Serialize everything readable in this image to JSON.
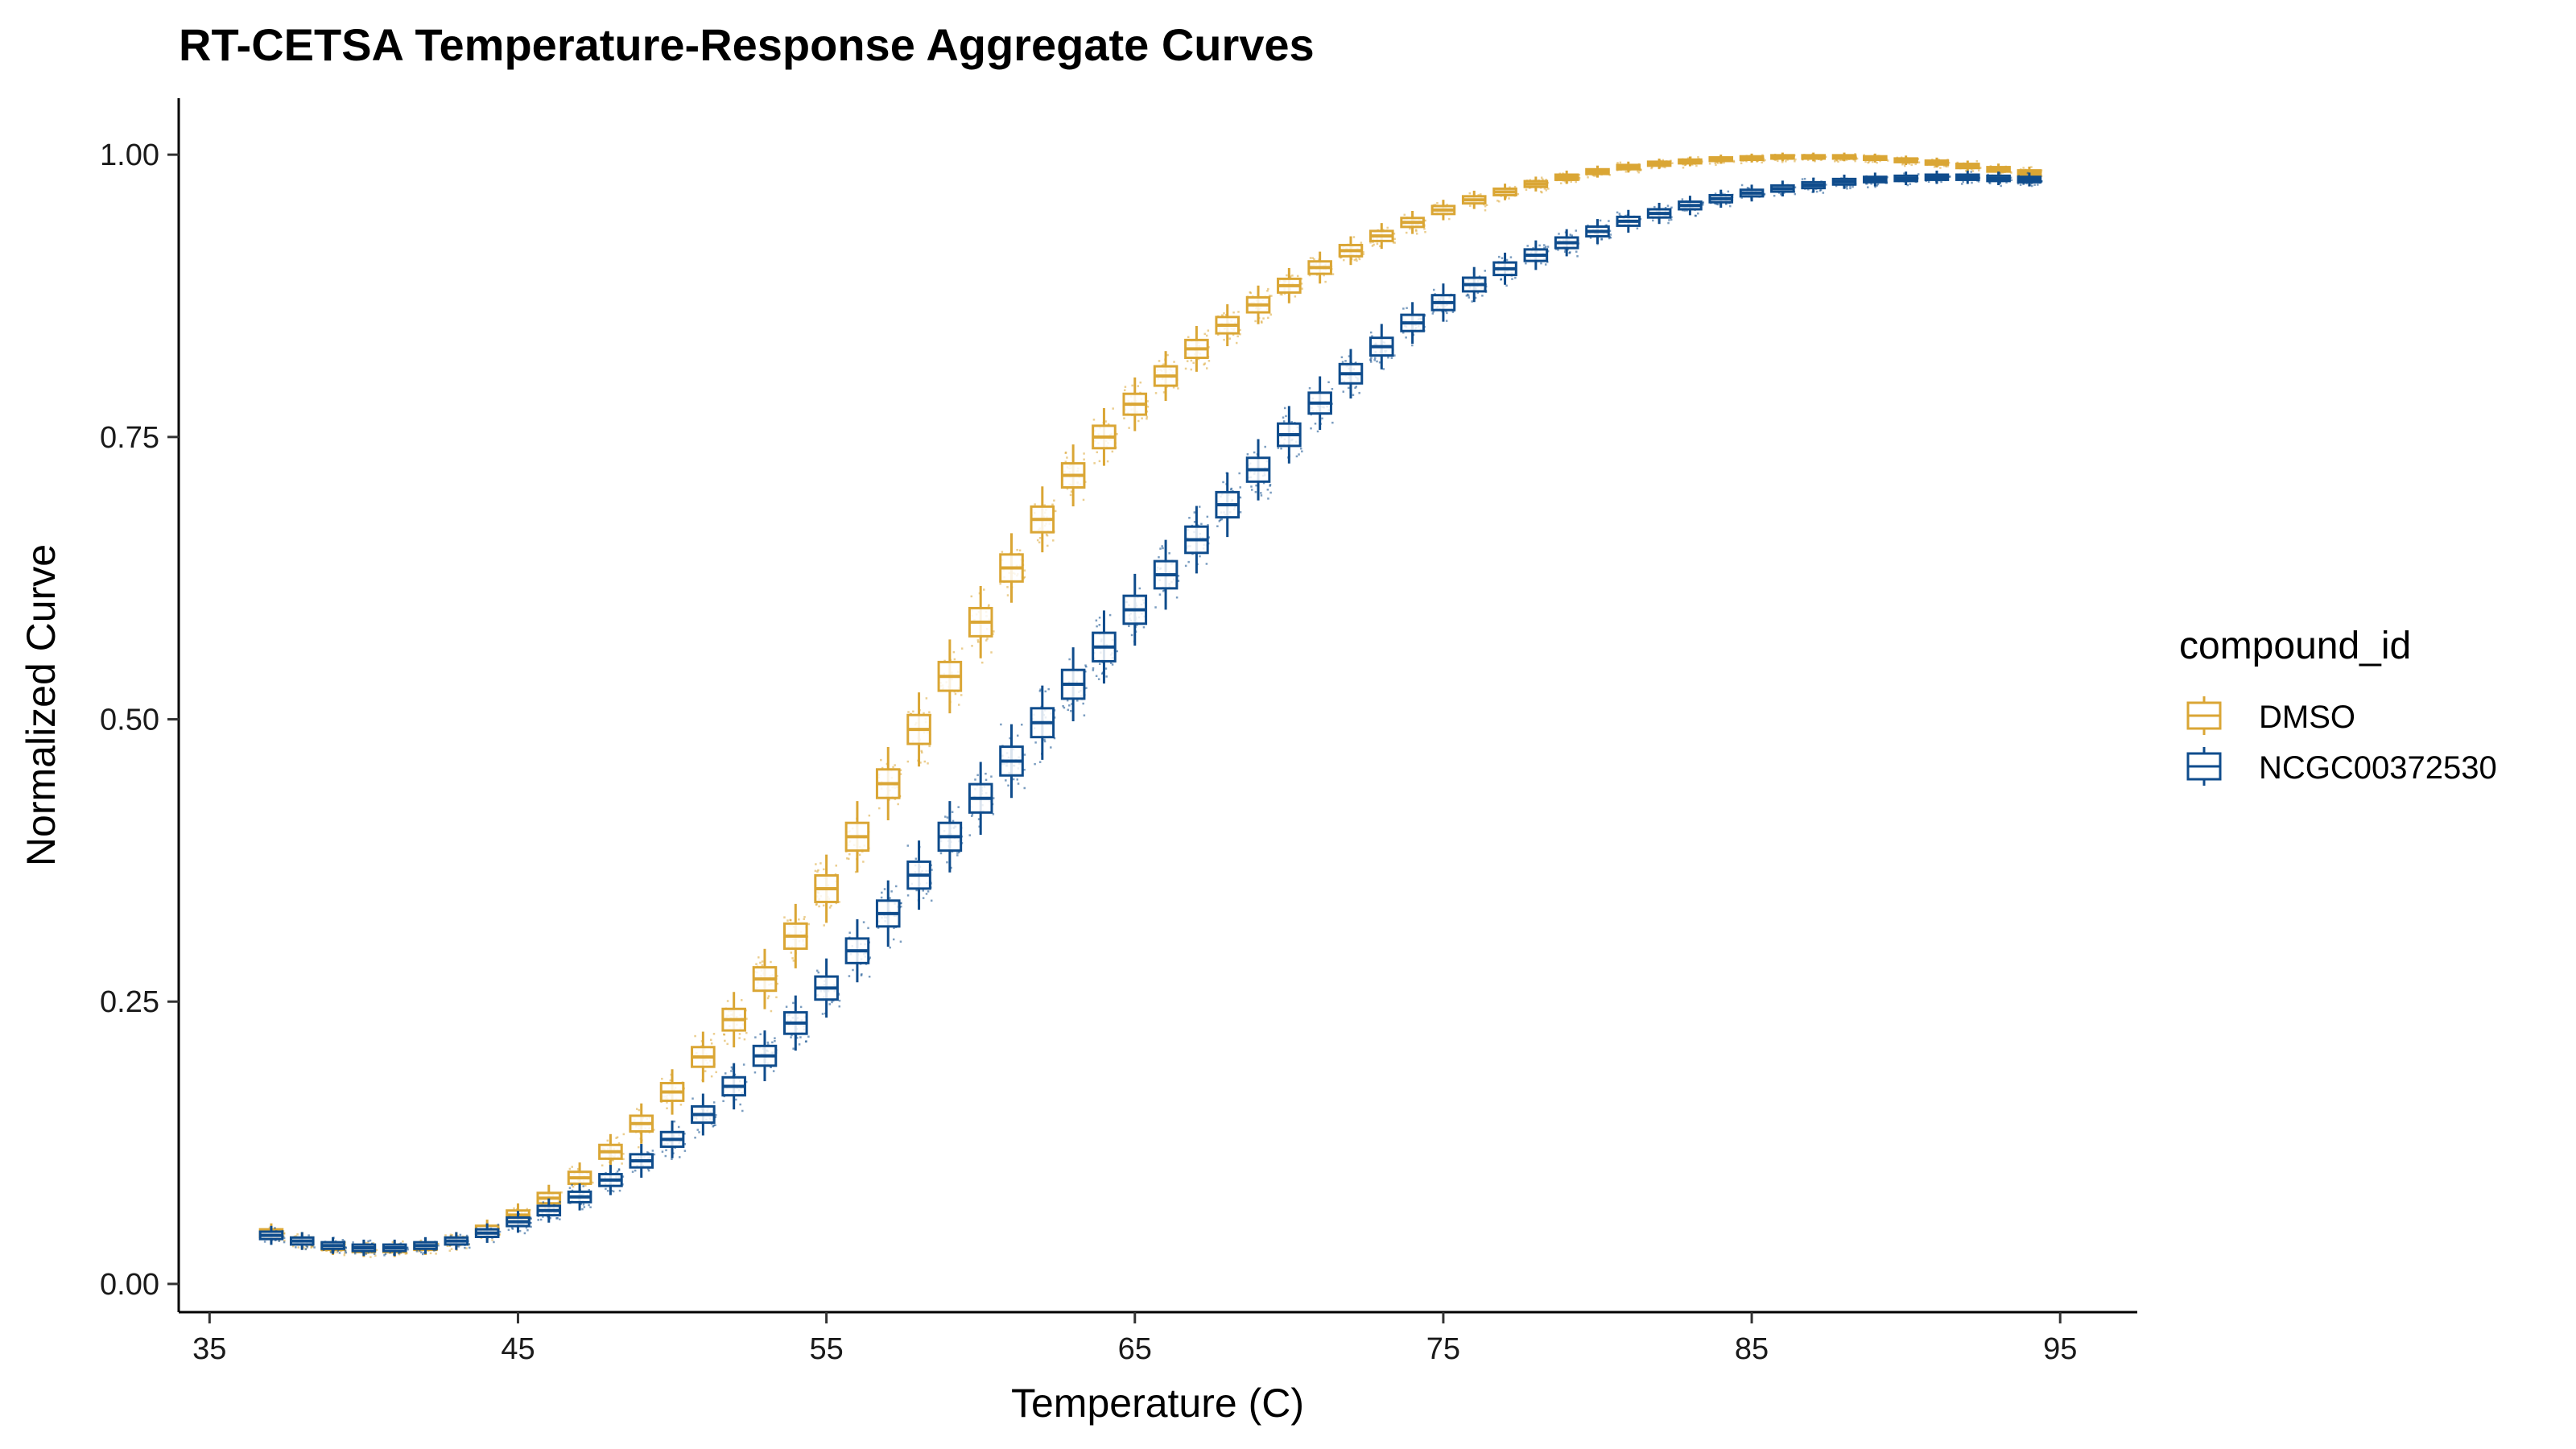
{
  "chart_data": {
    "type": "box",
    "title": "RT-CETSA Temperature-Response Aggregate Curves",
    "xlabel": "Temperature (C)",
    "ylabel": "Normalized Curve",
    "xlim": [
      34,
      97.5
    ],
    "ylim": [
      -0.025,
      1.05
    ],
    "xticks": [
      35,
      45,
      55,
      65,
      75,
      85,
      95
    ],
    "xtick_labels": [
      "35",
      "45",
      "55",
      "65",
      "75",
      "85",
      "95"
    ],
    "yticks": [
      0,
      0.25,
      0.5,
      0.75,
      1.0
    ],
    "ytick_labels": [
      "0.00",
      "0.25",
      "0.50",
      "0.75",
      "1.00"
    ],
    "grid": false,
    "legend": {
      "title": "compound_id",
      "placement": "right",
      "entries": [
        "DMSO",
        "NCGC00372530"
      ]
    },
    "series": [
      {
        "name": "DMSO",
        "color": "#DAA635",
        "x": [
          37,
          38,
          39,
          40,
          41,
          42,
          43,
          44,
          45,
          46,
          47,
          48,
          49,
          50,
          51,
          52,
          53,
          54,
          55,
          56,
          57,
          58,
          59,
          60,
          61,
          62,
          63,
          64,
          65,
          66,
          67,
          68,
          69,
          70,
          71,
          72,
          73,
          74,
          75,
          76,
          77,
          78,
          79,
          80,
          81,
          82,
          83,
          84,
          85,
          86,
          87,
          88,
          89,
          90,
          91,
          92,
          93,
          94
        ],
        "median": [
          0.045,
          0.038,
          0.033,
          0.031,
          0.031,
          0.033,
          0.038,
          0.048,
          0.061,
          0.076,
          0.094,
          0.117,
          0.142,
          0.17,
          0.201,
          0.234,
          0.27,
          0.308,
          0.35,
          0.396,
          0.443,
          0.491,
          0.538,
          0.586,
          0.634,
          0.677,
          0.716,
          0.75,
          0.779,
          0.804,
          0.828,
          0.849,
          0.867,
          0.884,
          0.9,
          0.915,
          0.928,
          0.94,
          0.951,
          0.96,
          0.967,
          0.974,
          0.98,
          0.985,
          0.989,
          0.992,
          0.994,
          0.996,
          0.997,
          0.998,
          0.998,
          0.998,
          0.997,
          0.995,
          0.993,
          0.99,
          0.987,
          0.984
        ]
      },
      {
        "name": "NCGC00372530",
        "color": "#0F4C8C",
        "x": [
          37,
          38,
          39,
          40,
          41,
          42,
          43,
          44,
          45,
          46,
          47,
          48,
          49,
          50,
          51,
          52,
          53,
          54,
          55,
          56,
          57,
          58,
          59,
          60,
          61,
          62,
          63,
          64,
          65,
          66,
          67,
          68,
          69,
          70,
          71,
          72,
          73,
          74,
          75,
          76,
          77,
          78,
          79,
          80,
          81,
          82,
          83,
          84,
          85,
          86,
          87,
          88,
          89,
          90,
          91,
          92,
          93,
          94
        ],
        "median": [
          0.043,
          0.038,
          0.034,
          0.032,
          0.032,
          0.034,
          0.038,
          0.045,
          0.055,
          0.065,
          0.077,
          0.092,
          0.109,
          0.128,
          0.15,
          0.175,
          0.202,
          0.231,
          0.262,
          0.295,
          0.328,
          0.362,
          0.396,
          0.43,
          0.463,
          0.497,
          0.531,
          0.564,
          0.597,
          0.628,
          0.659,
          0.69,
          0.721,
          0.752,
          0.78,
          0.806,
          0.83,
          0.851,
          0.869,
          0.885,
          0.899,
          0.911,
          0.922,
          0.932,
          0.941,
          0.948,
          0.955,
          0.961,
          0.966,
          0.97,
          0.973,
          0.976,
          0.978,
          0.979,
          0.98,
          0.98,
          0.979,
          0.978
        ]
      }
    ]
  }
}
